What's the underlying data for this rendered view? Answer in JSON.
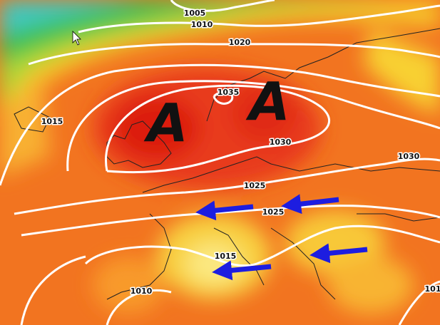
{
  "pressure_centers": [
    "A",
    "A"
  ],
  "isobar_labels": [
    "1005",
    "1010",
    "1020",
    "1035",
    "1015",
    "1030",
    "1030",
    "1025",
    "1025",
    "1015",
    "1010",
    "101"
  ]
}
